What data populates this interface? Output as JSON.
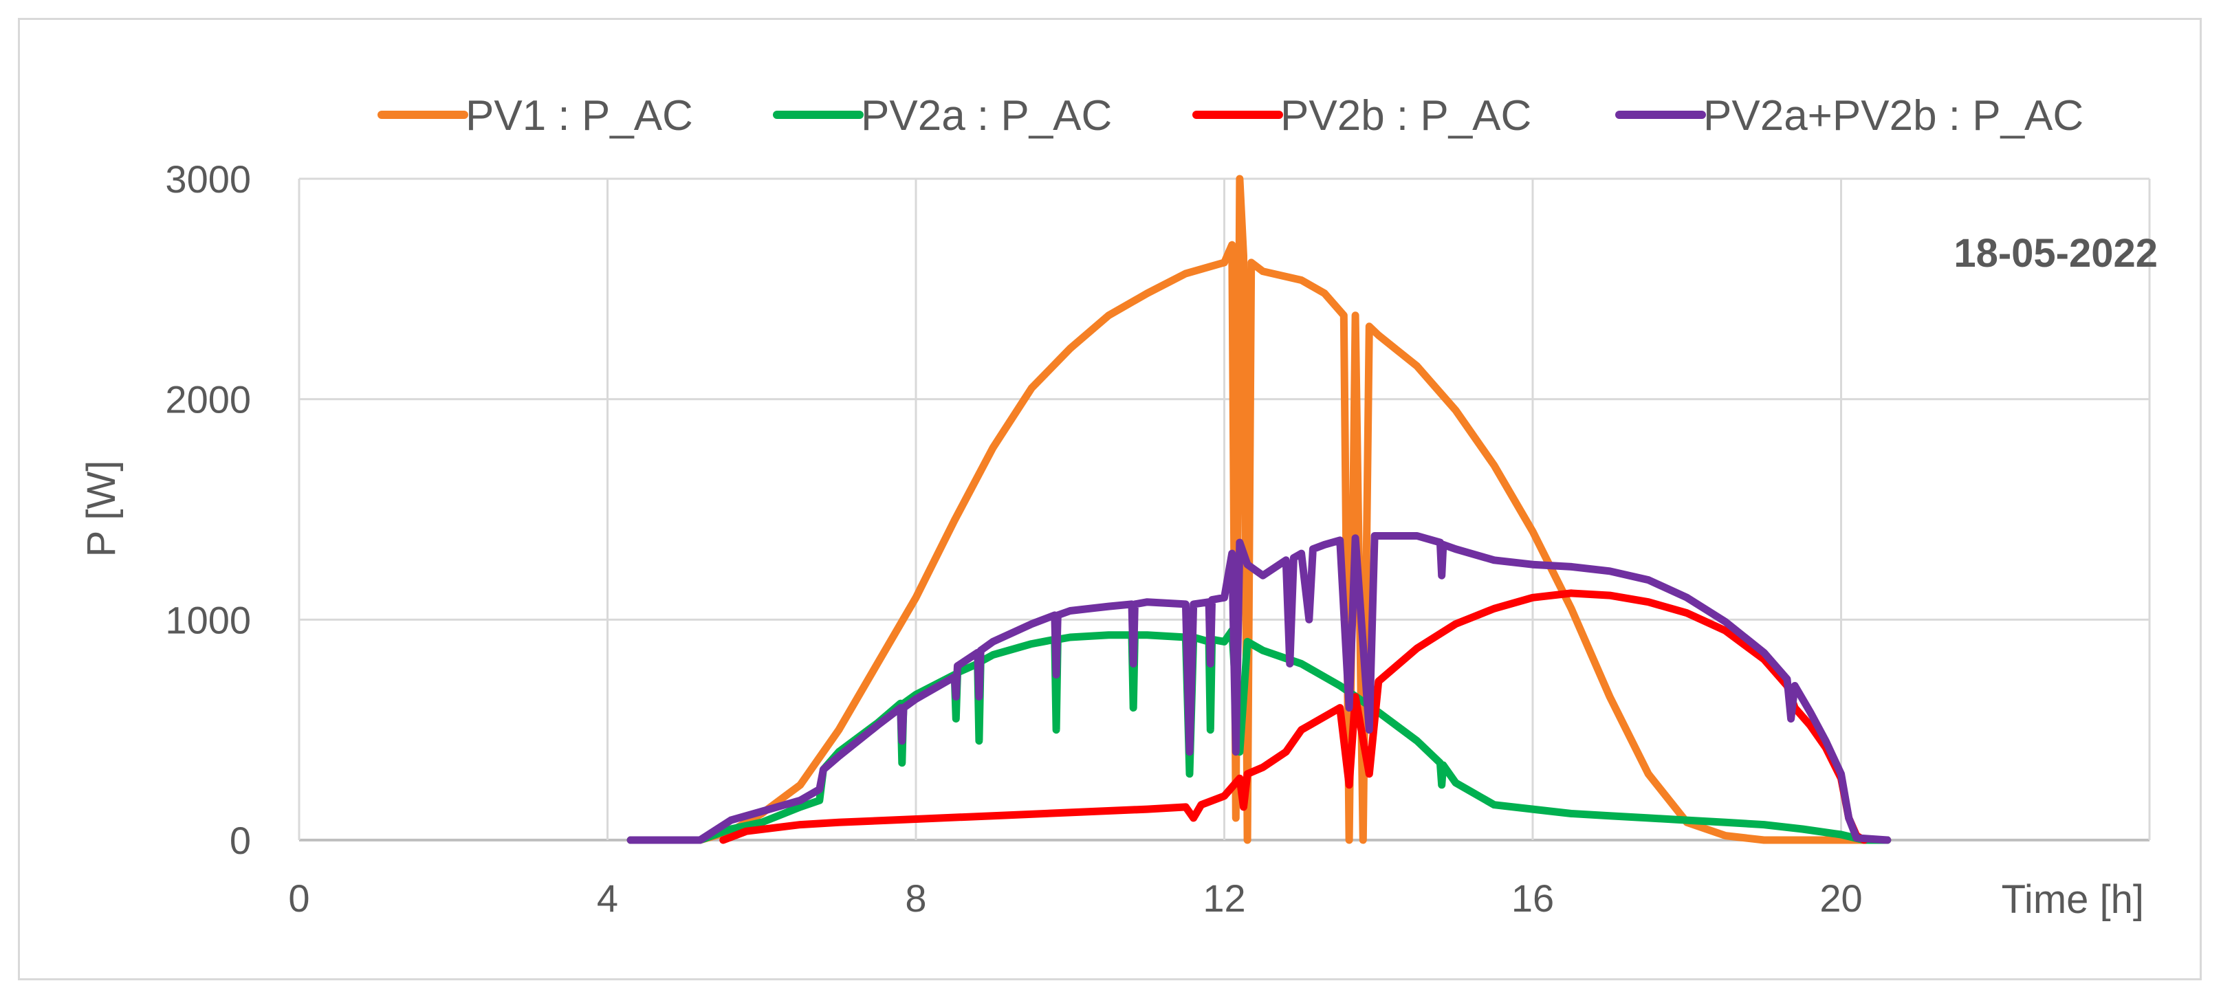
{
  "chart_data": {
    "type": "line",
    "title": "",
    "annotation": "18-05-2022",
    "xlabel": "Time [h]",
    "ylabel": "P [W]",
    "xlim": [
      0,
      24
    ],
    "ylim": [
      0,
      3000
    ],
    "xticks": [
      0,
      4,
      8,
      12,
      16,
      20
    ],
    "yticks": [
      0,
      1000,
      2000,
      3000
    ],
    "grid": true,
    "legend_position": "top",
    "series": [
      {
        "name": "PV1 : P_AC",
        "color": "#F58025",
        "points": [
          [
            4.3,
            0
          ],
          [
            5.2,
            0
          ],
          [
            5.6,
            40
          ],
          [
            6.0,
            120
          ],
          [
            6.5,
            250
          ],
          [
            7.0,
            500
          ],
          [
            7.5,
            800
          ],
          [
            8.0,
            1100
          ],
          [
            8.5,
            1450
          ],
          [
            9.0,
            1780
          ],
          [
            9.5,
            2050
          ],
          [
            10.0,
            2230
          ],
          [
            10.5,
            2380
          ],
          [
            11.0,
            2480
          ],
          [
            11.5,
            2570
          ],
          [
            12.0,
            2620
          ],
          [
            12.1,
            2700
          ],
          [
            12.15,
            100
          ],
          [
            12.2,
            3000
          ],
          [
            12.25,
            2650
          ],
          [
            12.3,
            0
          ],
          [
            12.35,
            2620
          ],
          [
            12.5,
            2580
          ],
          [
            13.0,
            2540
          ],
          [
            13.3,
            2480
          ],
          [
            13.55,
            2380
          ],
          [
            13.62,
            0
          ],
          [
            13.7,
            2380
          ],
          [
            13.8,
            0
          ],
          [
            13.88,
            2330
          ],
          [
            14.0,
            2290
          ],
          [
            14.5,
            2150
          ],
          [
            15.0,
            1950
          ],
          [
            15.5,
            1700
          ],
          [
            16.0,
            1400
          ],
          [
            16.5,
            1050
          ],
          [
            17.0,
            650
          ],
          [
            17.5,
            300
          ],
          [
            18.0,
            80
          ],
          [
            18.5,
            20
          ],
          [
            19.0,
            0
          ],
          [
            20.6,
            0
          ]
        ]
      },
      {
        "name": "PV2a : P_AC",
        "color": "#00B050",
        "points": [
          [
            4.3,
            0
          ],
          [
            5.2,
            0
          ],
          [
            5.6,
            50
          ],
          [
            6.0,
            80
          ],
          [
            6.5,
            150
          ],
          [
            6.75,
            180
          ],
          [
            6.8,
            320
          ],
          [
            7.0,
            400
          ],
          [
            7.5,
            530
          ],
          [
            7.8,
            620
          ],
          [
            7.82,
            350
          ],
          [
            7.84,
            620
          ],
          [
            8.0,
            660
          ],
          [
            8.5,
            750
          ],
          [
            8.52,
            550
          ],
          [
            8.54,
            760
          ],
          [
            8.8,
            800
          ],
          [
            8.82,
            450
          ],
          [
            8.84,
            810
          ],
          [
            9.0,
            840
          ],
          [
            9.5,
            890
          ],
          [
            9.8,
            910
          ],
          [
            9.82,
            500
          ],
          [
            9.84,
            910
          ],
          [
            10.0,
            920
          ],
          [
            10.5,
            930
          ],
          [
            10.8,
            930
          ],
          [
            10.82,
            600
          ],
          [
            10.84,
            930
          ],
          [
            11.0,
            930
          ],
          [
            11.5,
            920
          ],
          [
            11.55,
            300
          ],
          [
            11.6,
            920
          ],
          [
            11.8,
            900
          ],
          [
            11.82,
            500
          ],
          [
            11.84,
            910
          ],
          [
            12.0,
            900
          ],
          [
            12.1,
            950
          ],
          [
            12.2,
            400
          ],
          [
            12.3,
            900
          ],
          [
            12.5,
            860
          ],
          [
            13.0,
            800
          ],
          [
            13.5,
            700
          ],
          [
            14.0,
            580
          ],
          [
            14.5,
            450
          ],
          [
            14.8,
            350
          ],
          [
            14.82,
            250
          ],
          [
            14.84,
            340
          ],
          [
            15.0,
            260
          ],
          [
            15.5,
            160
          ],
          [
            16.0,
            140
          ],
          [
            16.5,
            120
          ],
          [
            17.0,
            110
          ],
          [
            17.5,
            100
          ],
          [
            18.0,
            90
          ],
          [
            18.5,
            80
          ],
          [
            19.0,
            70
          ],
          [
            19.5,
            50
          ],
          [
            20.0,
            25
          ],
          [
            20.3,
            0
          ],
          [
            20.6,
            0
          ]
        ]
      },
      {
        "name": "PV2b : P_AC",
        "color": "#FF0000",
        "points": [
          [
            5.5,
            0
          ],
          [
            5.8,
            40
          ],
          [
            6.5,
            70
          ],
          [
            7.0,
            80
          ],
          [
            8.0,
            95
          ],
          [
            9.0,
            110
          ],
          [
            10.0,
            125
          ],
          [
            11.0,
            140
          ],
          [
            11.5,
            150
          ],
          [
            11.6,
            100
          ],
          [
            11.7,
            160
          ],
          [
            12.0,
            200
          ],
          [
            12.2,
            280
          ],
          [
            12.25,
            150
          ],
          [
            12.3,
            300
          ],
          [
            12.5,
            330
          ],
          [
            12.8,
            400
          ],
          [
            13.0,
            500
          ],
          [
            13.5,
            600
          ],
          [
            13.62,
            250
          ],
          [
            13.7,
            650
          ],
          [
            13.88,
            300
          ],
          [
            14.0,
            720
          ],
          [
            14.5,
            870
          ],
          [
            15.0,
            980
          ],
          [
            15.5,
            1050
          ],
          [
            16.0,
            1100
          ],
          [
            16.5,
            1120
          ],
          [
            17.0,
            1110
          ],
          [
            17.5,
            1080
          ],
          [
            18.0,
            1030
          ],
          [
            18.5,
            950
          ],
          [
            19.0,
            820
          ],
          [
            19.3,
            700
          ],
          [
            19.4,
            600
          ],
          [
            19.6,
            520
          ],
          [
            19.8,
            420
          ],
          [
            20.0,
            280
          ],
          [
            20.1,
            100
          ],
          [
            20.2,
            20
          ],
          [
            20.3,
            0
          ]
        ]
      },
      {
        "name": "PV2a+PV2b : P_AC",
        "color": "#7030A0",
        "points": [
          [
            4.3,
            0
          ],
          [
            5.2,
            0
          ],
          [
            5.6,
            90
          ],
          [
            6.0,
            130
          ],
          [
            6.5,
            180
          ],
          [
            6.75,
            230
          ],
          [
            6.8,
            320
          ],
          [
            7.0,
            380
          ],
          [
            7.5,
            520
          ],
          [
            7.8,
            600
          ],
          [
            7.82,
            450
          ],
          [
            7.84,
            600
          ],
          [
            8.0,
            640
          ],
          [
            8.5,
            740
          ],
          [
            8.52,
            650
          ],
          [
            8.54,
            790
          ],
          [
            8.8,
            850
          ],
          [
            8.82,
            650
          ],
          [
            8.84,
            860
          ],
          [
            9.0,
            900
          ],
          [
            9.5,
            980
          ],
          [
            9.8,
            1020
          ],
          [
            9.82,
            750
          ],
          [
            9.84,
            1020
          ],
          [
            10.0,
            1040
          ],
          [
            10.5,
            1060
          ],
          [
            10.8,
            1070
          ],
          [
            10.82,
            800
          ],
          [
            10.84,
            1070
          ],
          [
            11.0,
            1080
          ],
          [
            11.5,
            1070
          ],
          [
            11.55,
            400
          ],
          [
            11.6,
            1070
          ],
          [
            11.8,
            1080
          ],
          [
            11.82,
            800
          ],
          [
            11.84,
            1090
          ],
          [
            12.0,
            1100
          ],
          [
            12.1,
            1300
          ],
          [
            12.15,
            400
          ],
          [
            12.2,
            1350
          ],
          [
            12.3,
            1250
          ],
          [
            12.5,
            1200
          ],
          [
            12.8,
            1270
          ],
          [
            12.85,
            800
          ],
          [
            12.9,
            1280
          ],
          [
            13.0,
            1300
          ],
          [
            13.1,
            1000
          ],
          [
            13.15,
            1320
          ],
          [
            13.3,
            1340
          ],
          [
            13.5,
            1360
          ],
          [
            13.62,
            600
          ],
          [
            13.7,
            1370
          ],
          [
            13.88,
            500
          ],
          [
            13.95,
            1380
          ],
          [
            14.0,
            1380
          ],
          [
            14.5,
            1380
          ],
          [
            14.8,
            1350
          ],
          [
            14.82,
            1200
          ],
          [
            14.84,
            1340
          ],
          [
            15.0,
            1320
          ],
          [
            15.5,
            1270
          ],
          [
            16.0,
            1250
          ],
          [
            16.5,
            1240
          ],
          [
            17.0,
            1220
          ],
          [
            17.5,
            1180
          ],
          [
            18.0,
            1100
          ],
          [
            18.5,
            990
          ],
          [
            19.0,
            850
          ],
          [
            19.3,
            730
          ],
          [
            19.35,
            550
          ],
          [
            19.4,
            700
          ],
          [
            19.6,
            580
          ],
          [
            19.8,
            450
          ],
          [
            20.0,
            300
          ],
          [
            20.1,
            100
          ],
          [
            20.2,
            10
          ],
          [
            20.6,
            0
          ]
        ]
      }
    ]
  }
}
